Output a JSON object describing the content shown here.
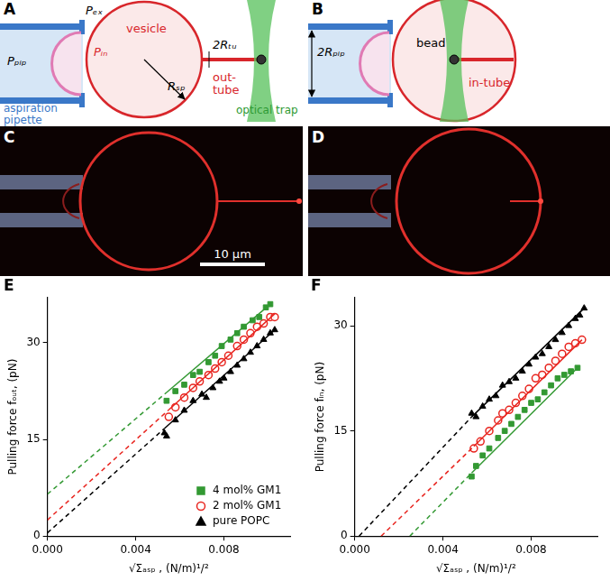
{
  "figure": {
    "A": {
      "label": "A",
      "pipette_pressure": "Pₚᵢₚ",
      "outside_pressure": "Pₑₓ",
      "inside_pressure": "Pᵢₙ",
      "vesicle": "vesicle",
      "vesicle_radius": "Rₛₚ",
      "tube_diameter": "2Rₜᵤ",
      "tube": [
        "out-",
        "tube"
      ],
      "trap": "optical trap",
      "pipette": [
        "aspiration",
        "pipette"
      ]
    },
    "B": {
      "label": "B",
      "pipette_diameter": "2Rₚᵢₚ",
      "bead": "bead",
      "tube": "in-tube"
    },
    "C": {
      "label": "C",
      "scale_bar": "10 μm"
    },
    "D": {
      "label": "D"
    }
  },
  "chart_data": [
    {
      "type": "scatter",
      "title": "E",
      "x_label": "√Σₐₛₚ , (N/m)¹/²",
      "y_label": "Pulling force fₒᵤₜ, (pN)",
      "xlim": [
        0,
        0.011
      ],
      "ylim": [
        0,
        37
      ],
      "xticks": [
        {
          "value": 0,
          "label": "0.000"
        },
        {
          "value": 0.004,
          "label": "0.004"
        },
        {
          "value": 0.008,
          "label": "0.008"
        }
      ],
      "yticks": [
        0,
        15,
        30
      ],
      "grid": false,
      "legend": "bottom-right",
      "series": [
        {
          "name": "4 mol% GM1",
          "color": "#339933",
          "marker": "square",
          "x": [
            0.0054,
            0.0058,
            0.0062,
            0.0066,
            0.0069,
            0.0073,
            0.0076,
            0.0079,
            0.0083,
            0.0086,
            0.0089,
            0.0093,
            0.0096,
            0.0099,
            0.0101
          ],
          "values": [
            21,
            22.5,
            23.5,
            25,
            25.5,
            27,
            28,
            29.5,
            30.5,
            31.5,
            32.5,
            33.5,
            34,
            35.5,
            36
          ],
          "fit": {
            "x": [
              0,
              0.0054,
              0.0101
            ],
            "values": [
              6.5,
              22.3,
              36
            ]
          }
        },
        {
          "name": "2 mol% GM1",
          "color": "#e8251f",
          "marker": "open circle",
          "x": [
            0.0055,
            0.0058,
            0.0062,
            0.0066,
            0.0069,
            0.0073,
            0.0076,
            0.0079,
            0.0082,
            0.0086,
            0.0089,
            0.0092,
            0.0095,
            0.0098,
            0.0101,
            0.0103
          ],
          "values": [
            18.5,
            20,
            21.5,
            23,
            24,
            25,
            26,
            27,
            28,
            29.5,
            30.5,
            31.5,
            32.5,
            33,
            34,
            34
          ],
          "fit": {
            "x": [
              0,
              0.0055,
              0.0103
            ],
            "values": [
              2.5,
              19.6,
              34.5
            ]
          }
        },
        {
          "name": "pure POPC",
          "color": "#000000",
          "marker": "triangle",
          "x": [
            0.0053,
            0.0054,
            0.0058,
            0.0062,
            0.0066,
            0.007,
            0.0072,
            0.0075,
            0.0078,
            0.008,
            0.0083,
            0.0086,
            0.0089,
            0.0092,
            0.0095,
            0.0098,
            0.0101,
            0.0103
          ],
          "values": [
            16,
            15.5,
            18,
            19.5,
            21,
            22,
            21.5,
            23,
            24,
            24.5,
            25.5,
            26.5,
            27.5,
            28.5,
            29.5,
            30.5,
            31.5,
            32
          ],
          "fit": {
            "x": [
              0,
              0.0053,
              0.0103
            ],
            "values": [
              0.5,
              16.7,
              32
            ]
          }
        }
      ]
    },
    {
      "type": "scatter",
      "title": "F",
      "x_label": "√Σₐₛₚ , (N/m)¹/²",
      "y_label": "Pulling force fᵢₙ, (pN)",
      "xlim": [
        0,
        0.011
      ],
      "ylim": [
        0,
        34
      ],
      "xticks": [
        {
          "value": 0,
          "label": "0.000"
        },
        {
          "value": 0.004,
          "label": "0.004"
        },
        {
          "value": 0.008,
          "label": "0.008"
        }
      ],
      "yticks": [
        0,
        15,
        30
      ],
      "grid": false,
      "series": [
        {
          "name": "4 mol% GM1",
          "color": "#339933",
          "marker": "square",
          "x": [
            0.0053,
            0.0055,
            0.0058,
            0.0061,
            0.0065,
            0.0068,
            0.0071,
            0.0074,
            0.0077,
            0.008,
            0.0083,
            0.0086,
            0.0089,
            0.0092,
            0.0095,
            0.0098,
            0.0101
          ],
          "values": [
            8.5,
            10,
            11.5,
            12.5,
            14,
            15,
            16,
            17,
            18,
            19,
            19.5,
            20.5,
            21.5,
            22.5,
            23,
            23.5,
            24
          ],
          "fit": {
            "x": [
              0.0025,
              0.0053,
              0.0101
            ],
            "values": [
              0,
              9,
              24
            ]
          }
        },
        {
          "name": "2 mol% GM1",
          "color": "#e8251f",
          "marker": "open circle",
          "x": [
            0.0054,
            0.0057,
            0.0061,
            0.0065,
            0.0067,
            0.007,
            0.0073,
            0.0076,
            0.0079,
            0.0082,
            0.0085,
            0.0088,
            0.0091,
            0.0094,
            0.0097,
            0.01,
            0.0103
          ],
          "values": [
            12.5,
            13.5,
            15,
            16.5,
            17.5,
            18,
            19,
            20,
            21,
            22.5,
            23,
            24,
            25,
            26,
            27,
            27.5,
            28
          ],
          "fit": {
            "x": [
              0.0012,
              0.0054,
              0.0103
            ],
            "values": [
              0,
              12.8,
              28
            ]
          }
        },
        {
          "name": "pure POPC",
          "color": "#000000",
          "marker": "triangle",
          "x": [
            0.0053,
            0.0055,
            0.0058,
            0.0061,
            0.0064,
            0.0067,
            0.007,
            0.0073,
            0.0076,
            0.0079,
            0.0082,
            0.0085,
            0.0088,
            0.0091,
            0.0094,
            0.0097,
            0.01,
            0.0102,
            0.0104
          ],
          "values": [
            17.5,
            17,
            18.5,
            19.5,
            20,
            21.5,
            22,
            22.5,
            23.5,
            24.5,
            25.5,
            26,
            27,
            28,
            29,
            30,
            31,
            31.5,
            32.5
          ],
          "fit": {
            "x": [
              0.0002,
              0.0053,
              0.0104
            ],
            "values": [
              0,
              17,
              32.5
            ]
          }
        }
      ]
    }
  ]
}
